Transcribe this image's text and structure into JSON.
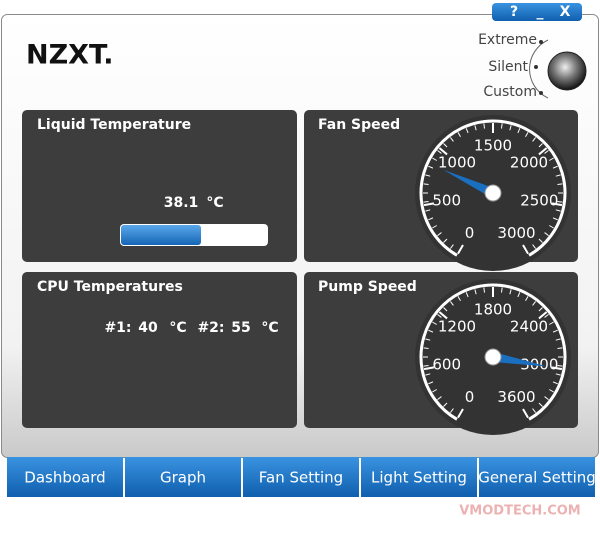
{
  "window": {
    "controls": [
      "?",
      "_",
      "X"
    ]
  },
  "header": {
    "logo": "NZXT.",
    "modes": [
      "Extreme",
      "Silent",
      "Custom"
    ]
  },
  "liquid": {
    "title": "Liquid Temperature",
    "value": "38.1",
    "unit": "°C"
  },
  "cpu": {
    "title": "CPU Temperatures",
    "sensors": [
      {
        "label": "#1:",
        "value": "40",
        "unit": "°C"
      },
      {
        "label": "#2:",
        "value": "55",
        "unit": "°C"
      }
    ]
  },
  "fan": {
    "title": "Fan Speed",
    "ticks": [
      0,
      500,
      1000,
      1500,
      2000,
      2500,
      3000
    ],
    "value": 850
  },
  "pump": {
    "title": "Pump Speed",
    "ticks": [
      0,
      600,
      1200,
      1800,
      2400,
      3000,
      3600
    ],
    "value": 3000
  },
  "tabs": [
    "Dashboard",
    "Graph",
    "Fan Setting",
    "Light Setting",
    "General Setting"
  ],
  "watermark": "VMODTECH.COM"
}
